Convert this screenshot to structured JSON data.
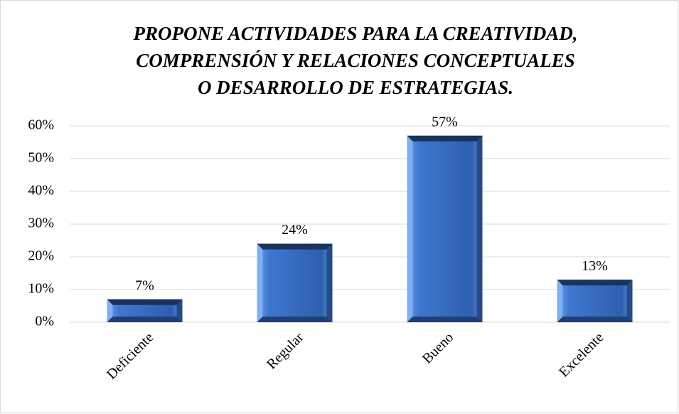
{
  "chart_data": {
    "type": "bar",
    "title": [
      "PROPONE ACTIVIDADES PARA LA CREATIVIDAD,",
      "COMPRENSIÓN Y RELACIONES CONCEPTUALES",
      "O DESARROLLO DE ESTRATEGIAS."
    ],
    "categories": [
      "Deficiente",
      "Regular",
      "Bueno",
      "Excelente"
    ],
    "values": [
      7,
      24,
      57,
      13
    ],
    "value_labels": [
      "7%",
      "24%",
      "57%",
      "13%"
    ],
    "color": "#3a6fc8",
    "ylim": [
      0,
      60
    ],
    "yticks": [
      {
        "value": 0,
        "label": "0%"
      },
      {
        "value": 10,
        "label": "10%"
      },
      {
        "value": 20,
        "label": "20%"
      },
      {
        "value": 30,
        "label": "30%"
      },
      {
        "value": 40,
        "label": "40%"
      },
      {
        "value": 50,
        "label": "50%"
      },
      {
        "value": 60,
        "label": "60%"
      }
    ],
    "grid": true
  }
}
